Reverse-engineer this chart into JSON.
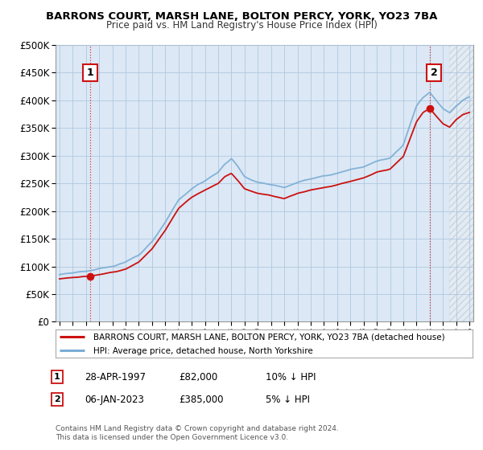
{
  "title": "BARRONS COURT, MARSH LANE, BOLTON PERCY, YORK, YO23 7BA",
  "subtitle": "Price paid vs. HM Land Registry's House Price Index (HPI)",
  "ytick_values": [
    0,
    50000,
    100000,
    150000,
    200000,
    250000,
    300000,
    350000,
    400000,
    450000,
    500000
  ],
  "ylim": [
    0,
    500000
  ],
  "xlim_start": 1994.7,
  "xlim_end": 2026.3,
  "hpi_color": "#7aadd4",
  "price_color": "#cc1111",
  "background_color": "#dce8f5",
  "grid_color": "#b0c8e0",
  "hatch_color": "#c8d8e8",
  "marker1_date": 1997.32,
  "marker1_price": 82000,
  "marker1_label": "1",
  "marker2_date": 2023.02,
  "marker2_price": 385000,
  "marker2_label": "2",
  "legend_line1": "BARRONS COURT, MARSH LANE, BOLTON PERCY, YORK, YO23 7BA (detached house)",
  "legend_line2": "HPI: Average price, detached house, North Yorkshire",
  "annotation1_date": "28-APR-1997",
  "annotation1_price": "£82,000",
  "annotation1_pct": "10% ↓ HPI",
  "annotation2_date": "06-JAN-2023",
  "annotation2_price": "£385,000",
  "annotation2_pct": "5% ↓ HPI",
  "footnote": "Contains HM Land Registry data © Crown copyright and database right 2024.\nThis data is licensed under the Open Government Licence v3.0.",
  "xticks": [
    1995,
    1996,
    1997,
    1998,
    1999,
    2000,
    2001,
    2002,
    2003,
    2004,
    2005,
    2006,
    2007,
    2008,
    2009,
    2010,
    2011,
    2012,
    2013,
    2014,
    2015,
    2016,
    2017,
    2018,
    2019,
    2020,
    2021,
    2022,
    2023,
    2024,
    2025,
    2026
  ],
  "hatch_start": 2024.5
}
